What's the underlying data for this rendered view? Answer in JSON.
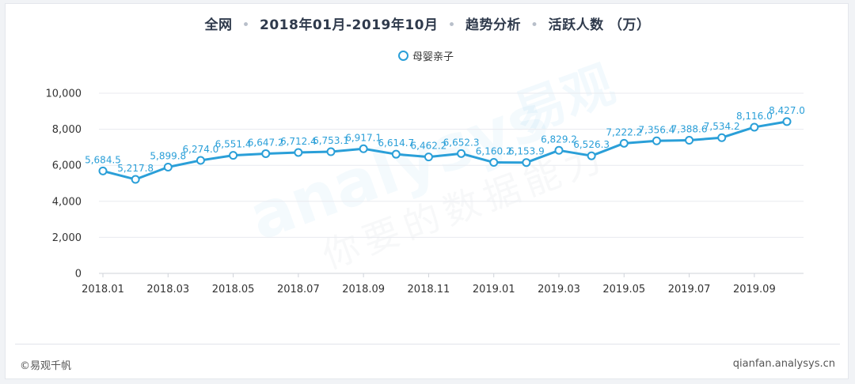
{
  "header": {
    "scope": "全网",
    "period": "2018年01月-2019年10月",
    "analysis": "趋势分析",
    "metric": "活跃人数 （万）"
  },
  "watermark": {
    "brand": "易观",
    "logo_text": "analysys",
    "slogan": "你要的数据能力"
  },
  "footer": {
    "copyright": "©易观千帆",
    "site": "qianfan.analysys.cn"
  },
  "colors": {
    "series": "#2a9fd8",
    "label": "#2a9fd8",
    "axis_text": "#333333",
    "grid": "#e8eaef"
  },
  "chart_data": {
    "type": "line",
    "ylim": [
      0,
      10000
    ],
    "yticks": [
      0,
      2000,
      4000,
      6000,
      8000,
      10000
    ],
    "ytick_labels": [
      "0",
      "2,000",
      "4,000",
      "6,000",
      "8,000",
      "10,000"
    ],
    "x": [
      "2018.01",
      "2018.02",
      "2018.03",
      "2018.04",
      "2018.05",
      "2018.06",
      "2018.07",
      "2018.08",
      "2018.09",
      "2018.10",
      "2018.11",
      "2018.12",
      "2019.01",
      "2019.02",
      "2019.03",
      "2019.04",
      "2019.05",
      "2019.06",
      "2019.07",
      "2019.08",
      "2019.09",
      "2019.10"
    ],
    "xtick_labels": [
      "2018.01",
      "2018.03",
      "2018.05",
      "2018.07",
      "2018.09",
      "2018.11",
      "2019.01",
      "2019.03",
      "2019.05",
      "2019.07",
      "2019.09"
    ],
    "grid": true,
    "legend_position": "top-center",
    "series": [
      {
        "name": "母婴亲子",
        "values": [
          5684.5,
          5217.8,
          5899.8,
          6274.0,
          6551.4,
          6647.2,
          6712.4,
          6753.1,
          6917.1,
          6614.7,
          6462.2,
          6652.3,
          6160.2,
          6153.9,
          6829.2,
          6526.3,
          7222.2,
          7356.4,
          7388.6,
          7534.2,
          8116.0,
          8427.0
        ],
        "labels": [
          "5,684.5",
          "5,217.8",
          "5,899.8",
          "6,274.0",
          "6,551.4",
          "6,647.2",
          "6,712.4",
          "6,753.1",
          "6,917.1",
          "6,614.7",
          "6,462.2",
          "6,652.3",
          "6,160.2",
          "6,153.9",
          "6,829.2",
          "6,526.3",
          "7,222.2",
          "7,356.4",
          "7,388.6",
          "7,534.2",
          "8,116.0",
          "8,427.0"
        ]
      }
    ]
  }
}
